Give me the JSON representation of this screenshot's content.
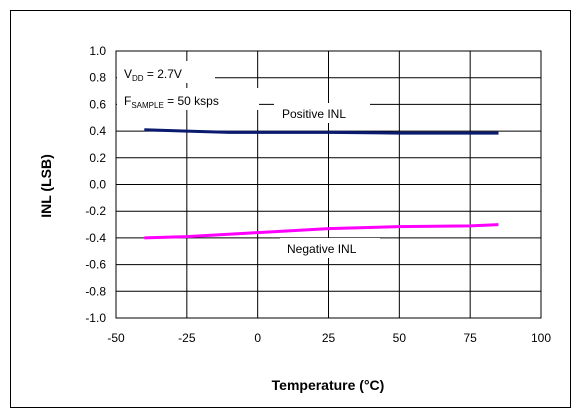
{
  "chart_data": {
    "type": "line",
    "title": "",
    "xlabel": "Temperature (°C)",
    "ylabel": "INL (LSB)",
    "xlim": [
      -50,
      100
    ],
    "ylim": [
      -1.0,
      1.0
    ],
    "xticks": [
      "-50",
      "-25",
      "0",
      "25",
      "50",
      "75",
      "100"
    ],
    "yticks": [
      "1.0",
      "0.8",
      "0.6",
      "0.4",
      "0.2",
      "0.0",
      "-0.2",
      "-0.4",
      "-0.6",
      "-0.8",
      "-1.0"
    ],
    "grid": true,
    "series": [
      {
        "name": "Positive INL",
        "color": "#0a1a6e",
        "x": [
          -40,
          -25,
          -10,
          0,
          25,
          50,
          75,
          85
        ],
        "y": [
          0.41,
          0.4,
          0.39,
          0.39,
          0.39,
          0.385,
          0.385,
          0.385
        ]
      },
      {
        "name": "Negative INL",
        "color": "#ff00ff",
        "x": [
          -40,
          -25,
          0,
          25,
          50,
          75,
          85
        ],
        "y": [
          -0.4,
          -0.39,
          -0.36,
          -0.33,
          -0.315,
          -0.31,
          -0.3
        ]
      }
    ],
    "annotations": {
      "vdd": {
        "main": "V",
        "sub": "DD",
        "rest": " = 2.7V"
      },
      "fsample": {
        "main": "F",
        "sub": "SAMPLE",
        "rest": " = 50 ksps"
      }
    }
  }
}
